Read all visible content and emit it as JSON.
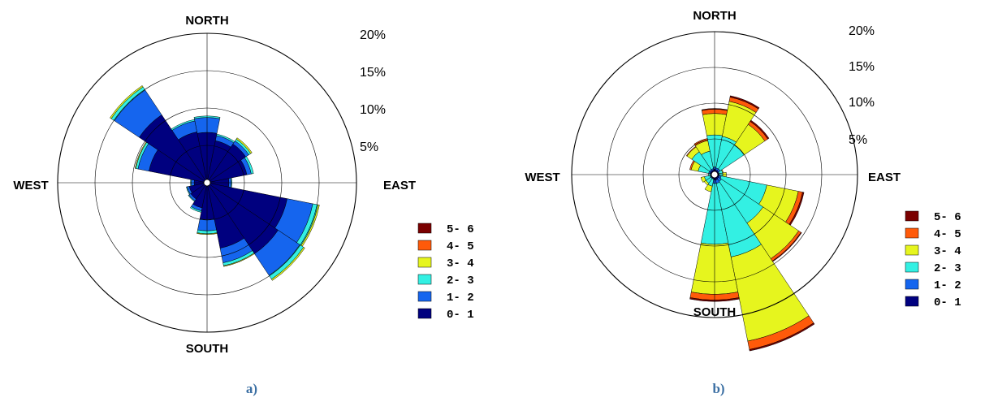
{
  "colors": {
    "0-1": "#00007f",
    "1-2": "#1565ee",
    "2-3": "#33f0e3",
    "3-4": "#e6f51e",
    "4-5": "#ff5a0a",
    "5-6": "#7a0000",
    "grid": "#000000",
    "panel_label": "#3b6fa3"
  },
  "chart_data": [
    {
      "type": "wind-rose",
      "panel_label": "a)",
      "compass": {
        "north": "NORTH",
        "south": "SOUTH",
        "east": "EAST",
        "west": "WEST"
      },
      "rings": [
        5,
        10,
        15,
        20
      ],
      "ring_labels": [
        "5%",
        "10%",
        "15%",
        "20%"
      ],
      "rmax": 20,
      "legend": [
        "5- 6",
        "4- 5",
        "3- 4",
        "2- 3",
        "1- 2",
        "0- 1"
      ],
      "bins": [
        "0-1",
        "1-2",
        "2-3",
        "3-4",
        "4-5",
        "5-6"
      ],
      "sectors": [
        {
          "dir": 0,
          "values": [
            6.3,
            2.0,
            0.2,
            0.0,
            0.0,
            0.0
          ]
        },
        {
          "dir": 22.5,
          "values": [
            5.3,
            0.7,
            0.2,
            0.0,
            0.0,
            0.0
          ]
        },
        {
          "dir": 45,
          "values": [
            5.8,
            0.5,
            0.3,
            0.2,
            0.0,
            0.0
          ]
        },
        {
          "dir": 67.5,
          "values": [
            5.0,
            0.6,
            0.3,
            0.0,
            0.0,
            0.0
          ]
        },
        {
          "dir": 90,
          "values": [
            2.5,
            0.3,
            0.1,
            0.0,
            0.0,
            0.0
          ]
        },
        {
          "dir": 112.5,
          "values": [
            10.5,
            3.5,
            0.7,
            0.2,
            0.0,
            0.0
          ]
        },
        {
          "dir": 135,
          "values": [
            11.0,
            3.5,
            0.6,
            0.2,
            0.0,
            0.0
          ]
        },
        {
          "dir": 157.5,
          "values": [
            8.5,
            2.0,
            0.4,
            0.1,
            0.0,
            0.0
          ]
        },
        {
          "dir": 180,
          "values": [
            4.5,
            1.5,
            0.4,
            0.1,
            0.0,
            0.0
          ]
        },
        {
          "dir": 202.5,
          "values": [
            3.0,
            0.4,
            0.2,
            0.0,
            0.0,
            0.0
          ]
        },
        {
          "dir": 225,
          "values": [
            2.2,
            0.3,
            0.1,
            0.0,
            0.0,
            0.0
          ]
        },
        {
          "dir": 247.5,
          "values": [
            2.0,
            0.3,
            0.1,
            0.0,
            0.0,
            0.0
          ]
        },
        {
          "dir": 270,
          "values": [
            1.3,
            0.4,
            0.1,
            0.0,
            0.0,
            0.0
          ]
        },
        {
          "dir": 292.5,
          "values": [
            7.5,
            1.5,
            0.3,
            0.1,
            0.0,
            0.0
          ]
        },
        {
          "dir": 315,
          "values": [
            10.5,
            4.0,
            0.5,
            0.2,
            0.0,
            0.0
          ]
        },
        {
          "dir": 337.5,
          "values": [
            6.5,
            1.5,
            0.2,
            0.0,
            0.0,
            0.0
          ]
        }
      ]
    },
    {
      "type": "wind-rose",
      "panel_label": "b)",
      "compass": {
        "north": "NORTH",
        "south": "SOUTH",
        "east": "EAST",
        "west": "WEST"
      },
      "rings": [
        5,
        10,
        15,
        20
      ],
      "ring_labels": [
        "5%",
        "10%",
        "15%",
        "20%"
      ],
      "rmax": 20,
      "legend": [
        "5- 6",
        "4- 5",
        "3- 4",
        "2- 3",
        "1- 2",
        "0- 1"
      ],
      "bins": [
        "0-1",
        "1-2",
        "2-3",
        "3-4",
        "4-5",
        "5-6"
      ],
      "sectors": [
        {
          "dir": 0,
          "values": [
            0.3,
            0.3,
            4.5,
            3.0,
            0.6,
            0.1
          ]
        },
        {
          "dir": 22.5,
          "values": [
            0.2,
            0.3,
            4.5,
            5.0,
            0.6,
            0.2
          ]
        },
        {
          "dir": 45,
          "values": [
            0.2,
            0.3,
            4.0,
            3.5,
            0.5,
            0.2
          ]
        },
        {
          "dir": 67.5,
          "values": [
            0.1,
            0.1,
            0.5,
            0.1,
            0.0,
            0.0
          ]
        },
        {
          "dir": 90,
          "values": [
            0.1,
            0.1,
            0.5,
            0.5,
            0.0,
            0.0
          ]
        },
        {
          "dir": 112.5,
          "values": [
            0.2,
            0.3,
            6.5,
            4.5,
            0.6,
            0.2
          ]
        },
        {
          "dir": 135,
          "values": [
            0.2,
            0.5,
            7.0,
            6.0,
            0.4,
            0.1
          ]
        },
        {
          "dir": 157.5,
          "values": [
            0.3,
            0.5,
            10.5,
            12.0,
            1.2,
            0.2
          ]
        },
        {
          "dir": 180,
          "values": [
            0.3,
            0.5,
            8.5,
            7.0,
            0.8,
            0.2
          ]
        },
        {
          "dir": 202.5,
          "values": [
            0.1,
            0.1,
            1.0,
            0.8,
            0.0,
            0.0
          ]
        },
        {
          "dir": 225,
          "values": [
            0.1,
            0.1,
            0.8,
            0.3,
            0.0,
            0.0
          ]
        },
        {
          "dir": 247.5,
          "values": [
            0.1,
            0.1,
            0.8,
            0.5,
            0.0,
            0.0
          ]
        },
        {
          "dir": 270,
          "values": [
            0.1,
            0.0,
            0.3,
            0.0,
            0.0,
            0.0
          ]
        },
        {
          "dir": 292.5,
          "values": [
            0.2,
            0.2,
            1.5,
            1.0,
            0.2,
            0.0
          ]
        },
        {
          "dir": 315,
          "values": [
            0.2,
            0.2,
            3.0,
            0.8,
            0.1,
            0.0
          ]
        },
        {
          "dir": 337.5,
          "values": [
            0.2,
            0.2,
            2.5,
            1.5,
            0.3,
            0.0
          ]
        }
      ]
    }
  ]
}
